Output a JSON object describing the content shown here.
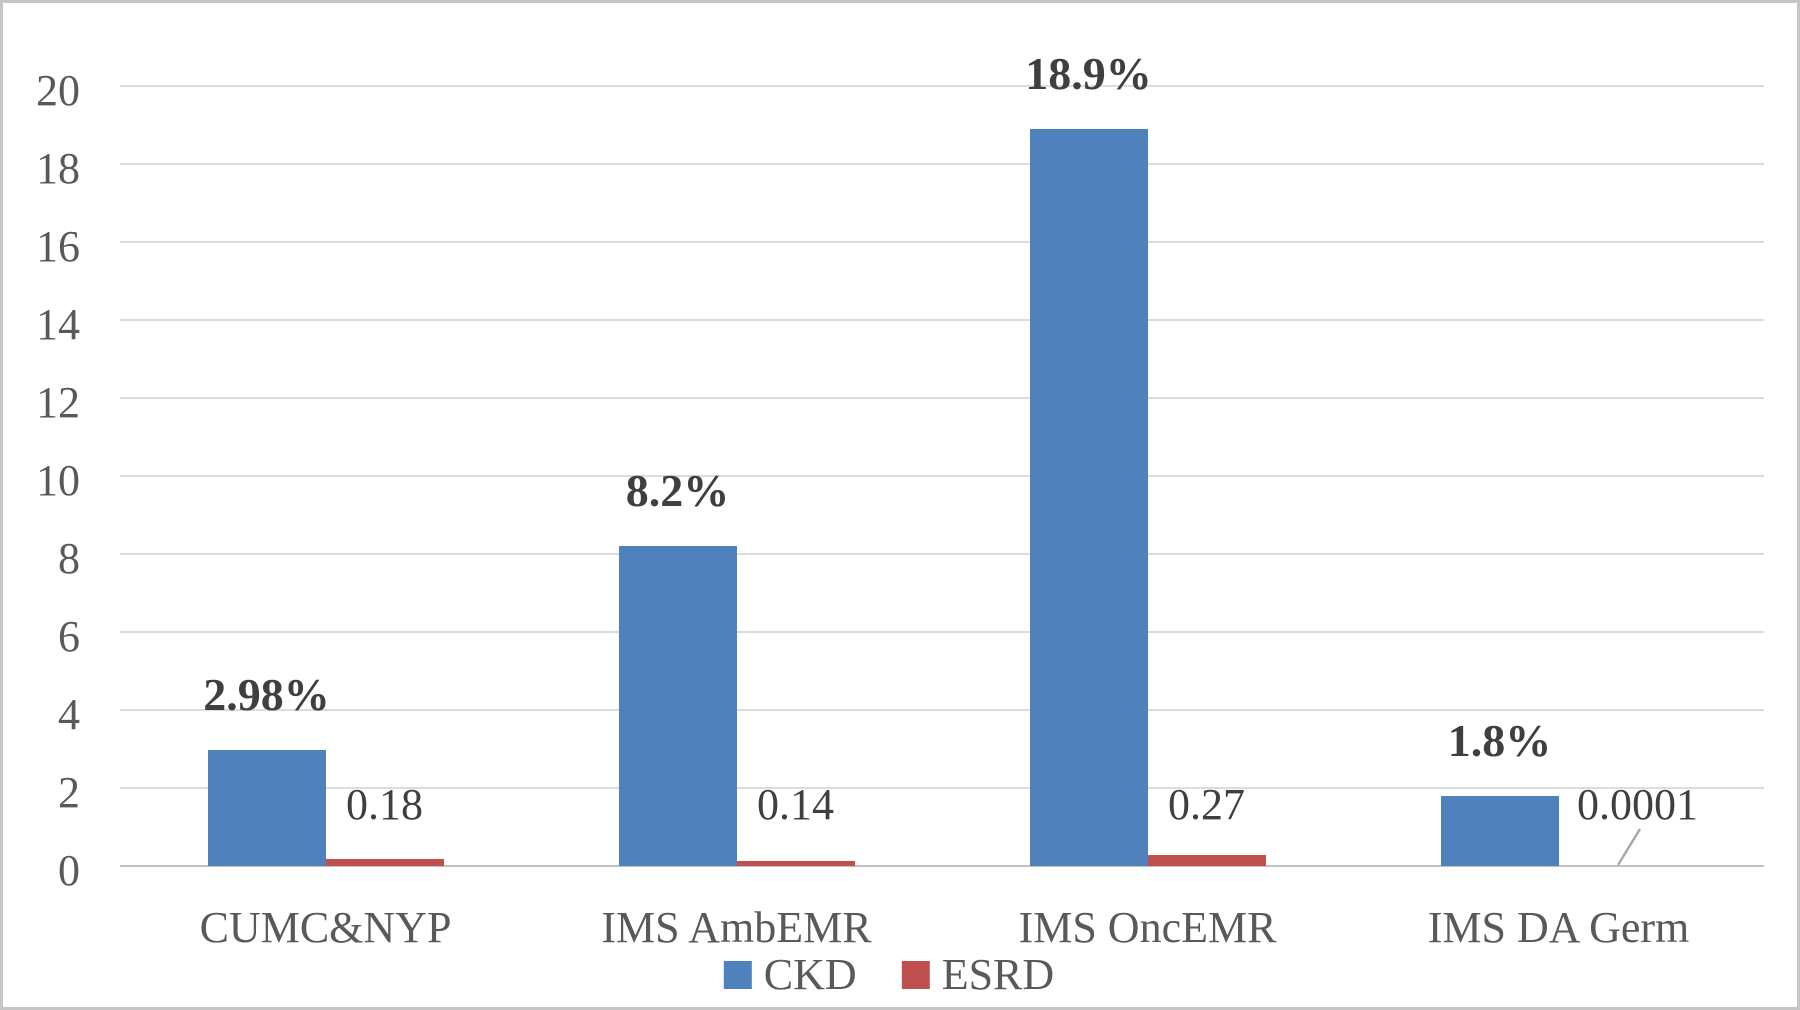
{
  "chart_data": {
    "type": "bar",
    "title": "",
    "xlabel": "",
    "ylabel": "",
    "grid": true,
    "categories": [
      "CUMC&NYP",
      "IMS AmbEMR",
      "IMS OncEMR",
      "IMS DA Germ"
    ],
    "series": [
      {
        "name": "CKD",
        "color": "#4F81BD",
        "values": [
          2.98,
          8.2,
          18.9,
          1.8
        ],
        "data_labels": [
          "2.98%",
          "8.2%",
          "18.9%",
          "1.8%"
        ],
        "label_weight": "bold"
      },
      {
        "name": "ESRD",
        "color": "#C0504D",
        "values": [
          0.18,
          0.14,
          0.27,
          0.0001
        ],
        "data_labels": [
          "0.18",
          "0.14",
          "0.27",
          "0.0001"
        ],
        "label_weight": "normal",
        "label_dx": [
          0,
          0,
          0,
          20
        ],
        "leader_line_category_index": 3
      }
    ],
    "y_axis": {
      "min": 0,
      "max": 20,
      "step": 2,
      "tick_labels": [
        "0",
        "2",
        "4",
        "6",
        "8",
        "10",
        "12",
        "14",
        "16",
        "18",
        "20"
      ]
    },
    "ylim": [
      0,
      20
    ],
    "legend": {
      "position": "bottom",
      "entries": [
        {
          "label": "CKD",
          "color": "#4F81BD"
        },
        {
          "label": "ESRD",
          "color": "#C0504D"
        }
      ]
    }
  },
  "colors": {
    "background": "#FFFFFF",
    "frame_border": "#C6C6C6",
    "gridline": "#DCDCDC",
    "axis_line": "#C0C0C0",
    "tick_text": "#595959",
    "category_text": "#595959",
    "legend_text": "#595959",
    "data_label_text": "#3F3F3F",
    "leader_line": "#A9A9A9"
  }
}
